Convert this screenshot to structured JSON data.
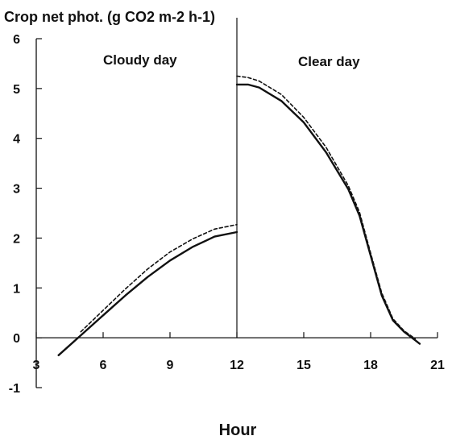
{
  "chart_data": {
    "type": "line",
    "title": "",
    "ylabel": "Crop net phot. (g CO2 m-2 h-1)",
    "xlabel": "Hour",
    "xlim": [
      3,
      21
    ],
    "ylim": [
      -1,
      6
    ],
    "xticks": [
      "3",
      "6",
      "9",
      "12",
      "15",
      "18",
      "21"
    ],
    "yticks": [
      "-1",
      "0",
      "1",
      "2",
      "3",
      "4",
      "5",
      "6"
    ],
    "grid": false,
    "annotations": [
      "Cloudy day",
      "Clear day"
    ],
    "divider_x": 12,
    "series": [
      {
        "style": "solid",
        "segments": [
          {
            "x": [
              4.0,
              5.0,
              6.0,
              7.0,
              8.0,
              9.0,
              10.0,
              11.0,
              12.0
            ],
            "y": [
              -0.35,
              0.05,
              0.45,
              0.85,
              1.22,
              1.55,
              1.82,
              2.03,
              2.12
            ]
          },
          {
            "x": [
              12.0,
              12.5,
              13.0,
              14.0,
              15.0,
              16.0,
              17.0,
              17.5,
              18.0,
              18.5,
              19.0,
              19.5,
              20.0,
              20.2
            ],
            "y": [
              5.08,
              5.08,
              5.02,
              4.75,
              4.32,
              3.72,
              2.98,
              2.45,
              1.65,
              0.85,
              0.35,
              0.12,
              -0.05,
              -0.12
            ]
          }
        ]
      },
      {
        "style": "dashed",
        "segments": [
          {
            "x": [
              5.0,
              6.0,
              7.0,
              8.0,
              9.0,
              10.0,
              11.0,
              12.0
            ],
            "y": [
              0.12,
              0.55,
              0.98,
              1.38,
              1.72,
              1.98,
              2.18,
              2.27
            ]
          },
          {
            "x": [
              12.0,
              12.5,
              13.0,
              14.0,
              15.0,
              16.0,
              17.0,
              17.5,
              18.0,
              18.5,
              19.0,
              19.5,
              20.0
            ],
            "y": [
              5.25,
              5.22,
              5.15,
              4.88,
              4.42,
              3.82,
              3.05,
              2.52,
              1.7,
              0.9,
              0.38,
              0.14,
              -0.02
            ]
          }
        ]
      }
    ]
  }
}
